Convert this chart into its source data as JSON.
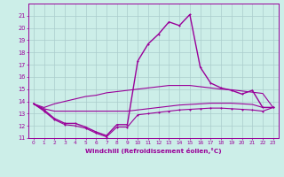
{
  "xlabel": "Windchill (Refroidissement éolien,°C)",
  "x": [
    0,
    1,
    2,
    3,
    4,
    5,
    6,
    7,
    8,
    9,
    10,
    11,
    12,
    13,
    14,
    15,
    16,
    17,
    18,
    19,
    20,
    21,
    22,
    23
  ],
  "line_main": [
    13.8,
    13.3,
    12.6,
    12.2,
    12.2,
    11.9,
    11.5,
    11.2,
    12.1,
    12.1,
    17.3,
    18.7,
    19.5,
    20.5,
    20.2,
    21.1,
    16.8,
    15.5,
    15.1,
    14.9,
    14.6,
    14.9,
    13.5,
    13.5
  ],
  "line_top": [
    13.8,
    13.5,
    13.8,
    14.0,
    14.2,
    14.4,
    14.5,
    14.7,
    14.8,
    14.9,
    15.0,
    15.1,
    15.2,
    15.3,
    15.3,
    15.3,
    15.2,
    15.1,
    15.0,
    14.95,
    14.85,
    14.75,
    14.65,
    13.5
  ],
  "line_mid": [
    13.8,
    13.4,
    13.2,
    13.2,
    13.2,
    13.2,
    13.2,
    13.2,
    13.2,
    13.2,
    13.3,
    13.4,
    13.5,
    13.6,
    13.7,
    13.75,
    13.8,
    13.85,
    13.85,
    13.85,
    13.8,
    13.75,
    13.5,
    13.5
  ],
  "line_bot": [
    13.8,
    13.2,
    12.5,
    12.1,
    12.0,
    11.8,
    11.4,
    11.1,
    11.9,
    11.9,
    12.9,
    13.0,
    13.1,
    13.2,
    13.3,
    13.35,
    13.4,
    13.45,
    13.45,
    13.4,
    13.35,
    13.3,
    13.2,
    13.5
  ],
  "ylim": [
    11,
    22
  ],
  "xlim": [
    -0.5,
    23.5
  ],
  "bg_color": "#cceee8",
  "line_color": "#990099",
  "grid_color": "#aacccc"
}
